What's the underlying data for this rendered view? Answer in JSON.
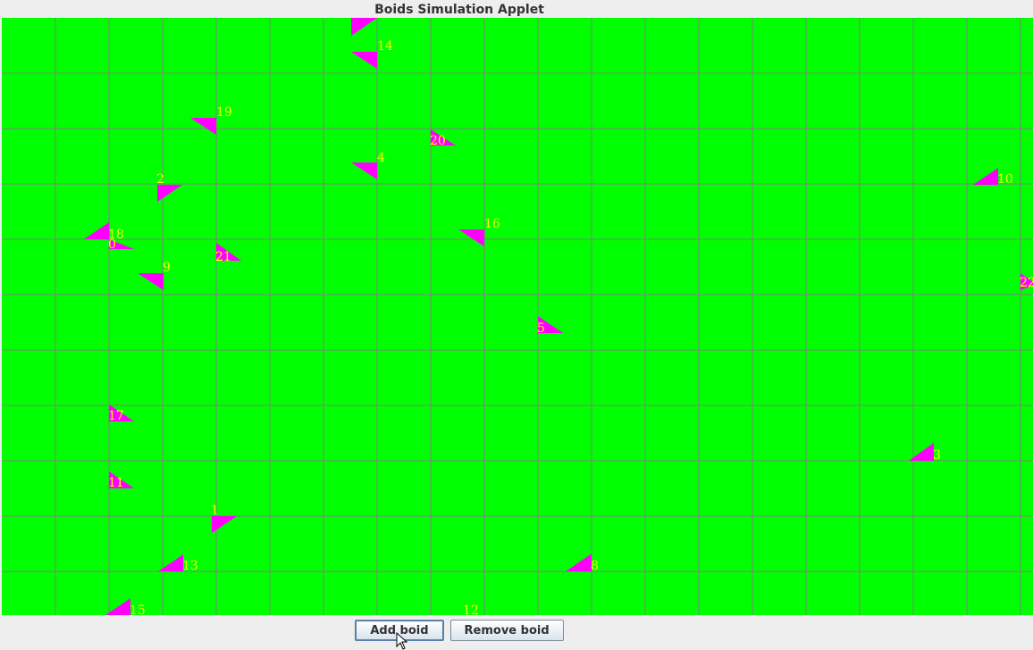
{
  "window": {
    "title": "Boids Simulation Applet"
  },
  "canvas": {
    "background": "#00ff00",
    "grid_color": "#808080",
    "boid_color": "#ff00ff",
    "label_color": "#ffff00"
  },
  "boids": [
    {
      "id": "0",
      "points": [
        [
          122,
          268
        ],
        [
          150,
          279
        ],
        [
          122,
          279
        ]
      ],
      "label": [
        121,
        267
      ]
    },
    {
      "id": "1",
      "points": [
        [
          237,
          578
        ],
        [
          265,
          578
        ],
        [
          237,
          597
        ]
      ],
      "label": [
        236,
        565
      ]
    },
    {
      "id": "2",
      "points": [
        [
          176,
          207
        ],
        [
          204,
          207
        ],
        [
          176,
          226
        ]
      ],
      "label": [
        175,
        194
      ]
    },
    {
      "id": "3",
      "points": [
        [
          1045,
          496
        ],
        [
          1045,
          516
        ],
        [
          1017,
          516
        ]
      ],
      "label": [
        1044,
        503
      ]
    },
    {
      "id": "4",
      "points": [
        [
          393,
          182
        ],
        [
          422,
          182
        ],
        [
          422,
          201
        ]
      ],
      "label": [
        422,
        170
      ]
    },
    {
      "id": "5",
      "points": [
        [
          602,
          354
        ],
        [
          630,
          373
        ],
        [
          602,
          373
        ]
      ],
      "label": [
        601,
        361
      ]
    },
    {
      "id": "8",
      "points": [
        [
          662,
          620
        ],
        [
          662,
          640
        ],
        [
          633,
          640
        ]
      ],
      "label": [
        661,
        627
      ]
    },
    {
      "id": "9",
      "points": [
        [
          154,
          306
        ],
        [
          183,
          306
        ],
        [
          183,
          325
        ]
      ],
      "label": [
        182,
        293
      ]
    },
    {
      "id": "10",
      "points": [
        [
          1117,
          188
        ],
        [
          1117,
          207
        ],
        [
          1089,
          207
        ]
      ],
      "label": [
        1116,
        194
      ]
    },
    {
      "id": "11",
      "points": [
        [
          122,
          528
        ],
        [
          150,
          547
        ],
        [
          122,
          547
        ]
      ],
      "label": [
        121,
        534
      ]
    },
    {
      "id": "12",
      "points": [],
      "label": [
        518,
        677
      ]
    },
    {
      "id": "13",
      "points": [
        [
          205,
          621
        ],
        [
          205,
          640
        ],
        [
          177,
          640
        ]
      ],
      "label": [
        204,
        627
      ]
    },
    {
      "id": "14",
      "points": [
        [
          393,
          58
        ],
        [
          422,
          58
        ],
        [
          422,
          77
        ]
      ],
      "label": [
        422,
        45
      ]
    },
    {
      "id": "15",
      "points": [
        [
          146,
          670
        ],
        [
          146,
          689
        ],
        [
          118,
          689
        ]
      ],
      "label": [
        145,
        677
      ]
    },
    {
      "id": "16",
      "points": [
        [
          513,
          257
        ],
        [
          542,
          257
        ],
        [
          542,
          276
        ]
      ],
      "label": [
        542,
        244
      ]
    },
    {
      "id": "17",
      "points": [
        [
          122,
          453
        ],
        [
          150,
          472
        ],
        [
          122,
          472
        ]
      ],
      "label": [
        121,
        459
      ]
    },
    {
      "id": "18",
      "points": [
        [
          122,
          249
        ],
        [
          122,
          268
        ],
        [
          94,
          268
        ]
      ],
      "label": [
        121,
        256
      ]
    },
    {
      "id": "19",
      "points": [
        [
          213,
          132
        ],
        [
          242,
          132
        ],
        [
          242,
          151
        ]
      ],
      "label": [
        242,
        119
      ]
    },
    {
      "id": "20",
      "points": [
        [
          482,
          145
        ],
        [
          510,
          163
        ],
        [
          482,
          163
        ]
      ],
      "label": [
        481,
        151
      ]
    },
    {
      "id": "21",
      "points": [
        [
          242,
          272
        ],
        [
          270,
          292
        ],
        [
          242,
          292
        ]
      ],
      "label": [
        241,
        281
      ]
    },
    {
      "id": "22",
      "points": [
        [
          1142,
          306
        ],
        [
          1160,
          318
        ],
        [
          1142,
          325
        ]
      ],
      "label": [
        1141,
        310
      ]
    },
    {
      "id": "",
      "points": [
        [
          393,
          20
        ],
        [
          422,
          20
        ],
        [
          393,
          40
        ]
      ],
      "label": null
    }
  ],
  "buttons": {
    "add": "Add boid",
    "remove": "Remove boid"
  }
}
